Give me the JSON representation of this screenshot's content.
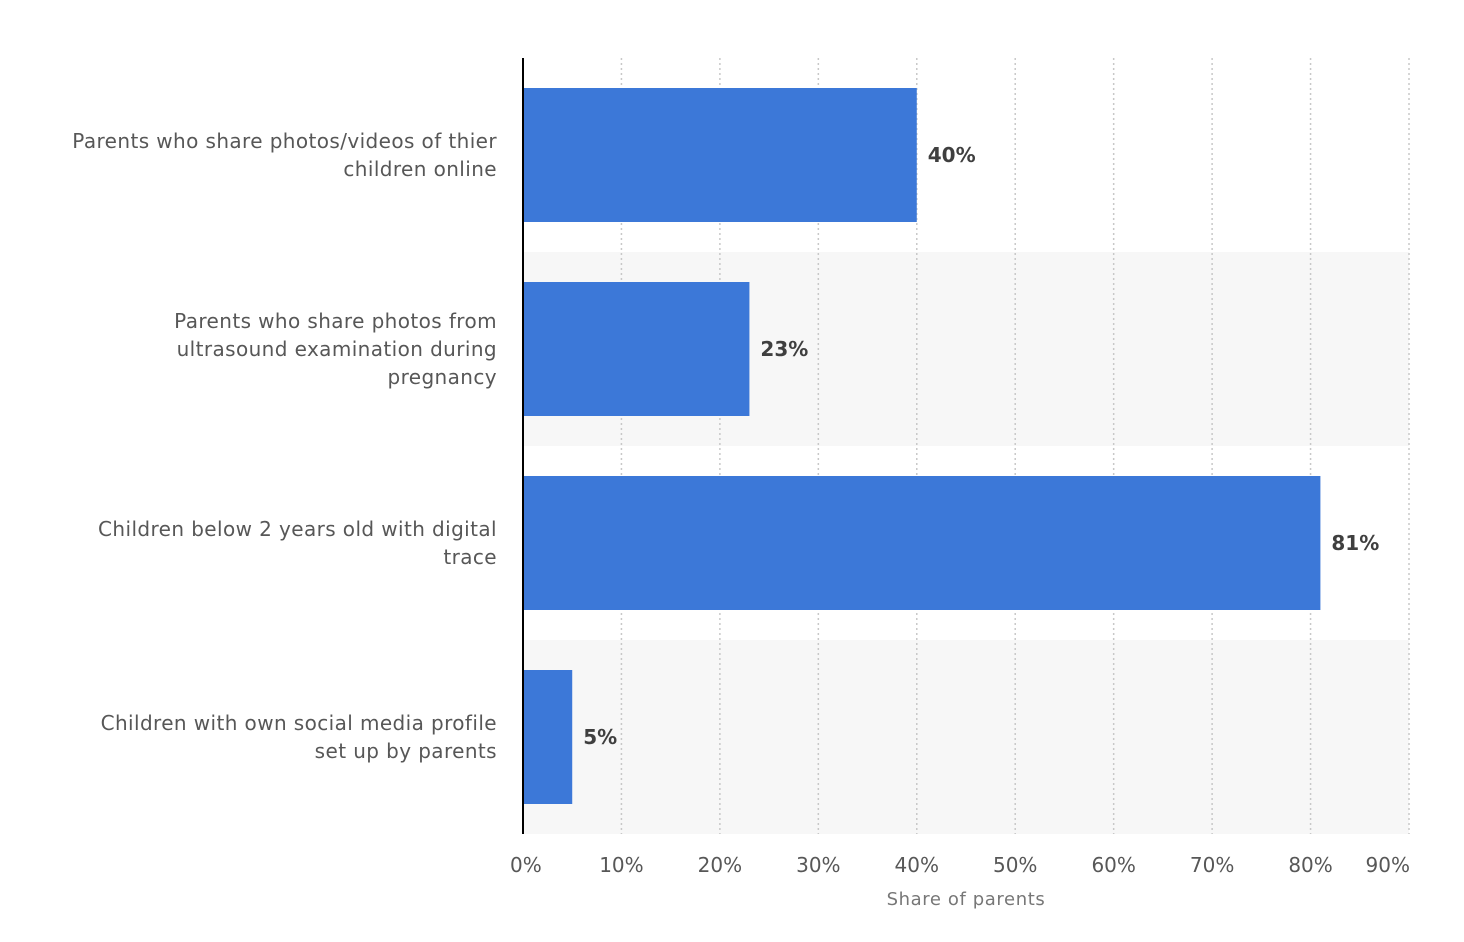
{
  "chart_data": {
    "type": "bar",
    "orientation": "horizontal",
    "categories": [
      [
        "Parents who share photos/videos of thier",
        "children online"
      ],
      [
        "Parents who share photos from",
        "ultrasound examination during",
        "pregnancy"
      ],
      [
        "Children below 2 years old with digital",
        "trace"
      ],
      [
        "Children with own social media profile",
        "set up by parents"
      ]
    ],
    "values": [
      40,
      23,
      81,
      5
    ],
    "value_labels": [
      "40%",
      "23%",
      "81%",
      "5%"
    ],
    "xlabel": "Share of parents",
    "xlim": [
      0,
      90
    ],
    "ticks": [
      0,
      10,
      20,
      30,
      40,
      50,
      60,
      70,
      80,
      90
    ],
    "tick_labels": [
      "0%",
      "10%",
      "20%",
      "30%",
      "40%",
      "50%",
      "60%",
      "70%",
      "80%",
      "90%"
    ],
    "grid": true,
    "colors": {
      "bar": "#3c78d8",
      "band": "#f7f7f7",
      "grid": "#c8c8c8",
      "axis": "#000000"
    }
  }
}
